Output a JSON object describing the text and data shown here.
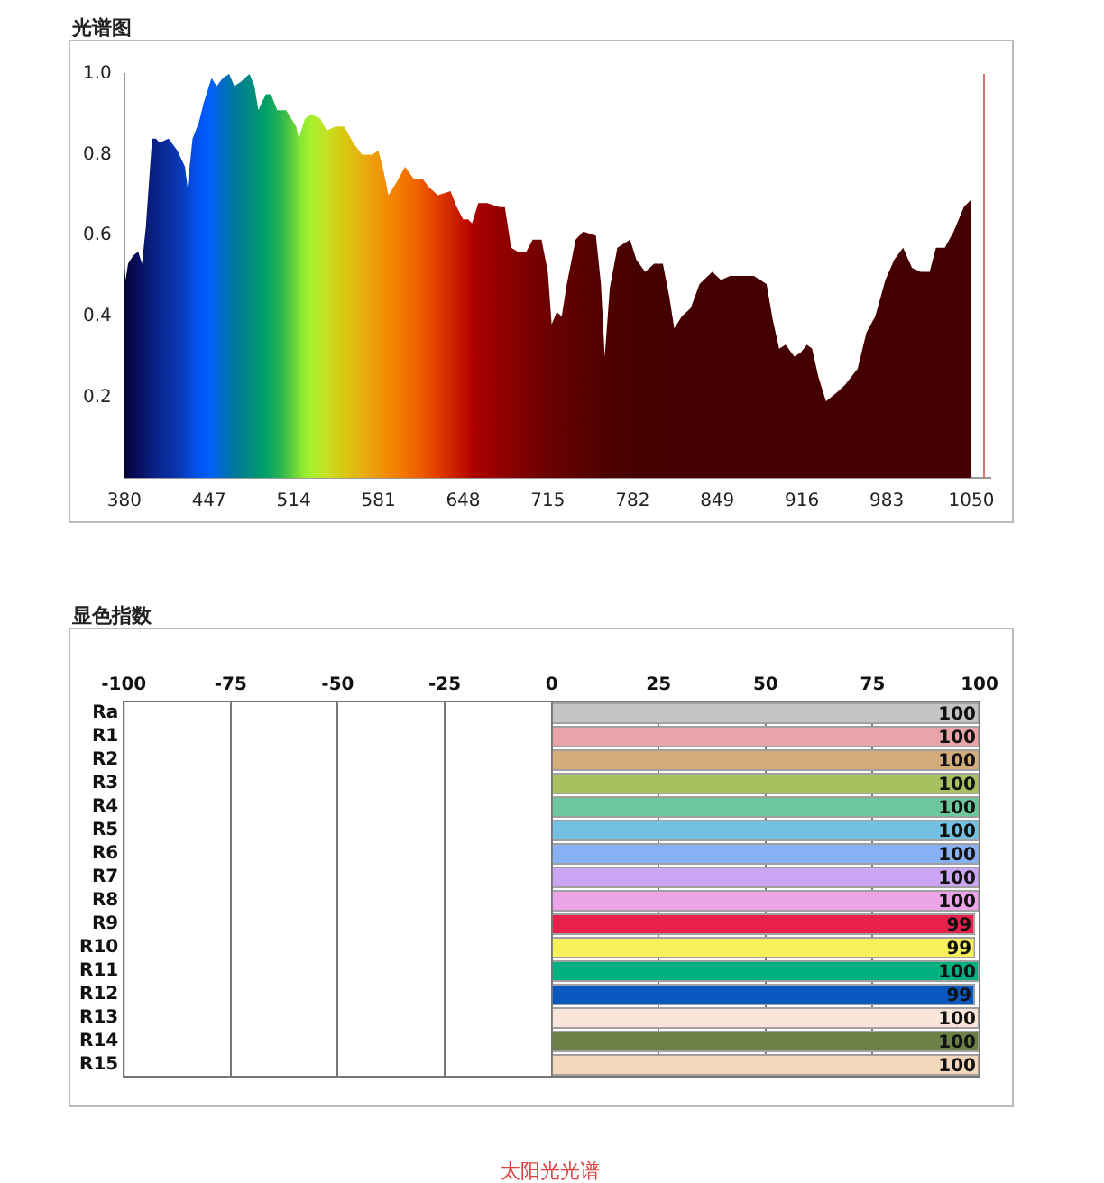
{
  "chart_data": [
    {
      "type": "area",
      "title": "光谱图",
      "x": [
        380,
        381,
        383,
        387,
        391,
        394,
        397,
        402,
        405,
        408,
        415,
        422,
        428,
        430,
        434,
        439,
        443,
        449,
        453,
        458,
        463,
        467,
        472,
        479,
        483,
        486,
        492,
        496,
        501,
        508,
        516,
        518,
        523,
        528,
        535,
        540,
        547,
        554,
        561,
        568,
        576,
        581,
        585,
        589,
        595,
        602,
        609,
        616,
        621,
        628,
        638,
        643,
        648,
        652,
        655,
        660,
        667,
        677,
        681,
        686,
        691,
        698,
        703,
        710,
        715,
        718,
        722,
        726,
        730,
        737,
        743,
        753,
        757,
        760,
        764,
        770,
        780,
        785,
        792,
        799,
        806,
        811,
        815,
        821,
        828,
        835,
        845,
        852,
        859,
        868,
        878,
        888,
        893,
        898,
        903,
        910,
        915,
        920,
        924,
        929,
        935,
        943,
        950,
        960,
        967,
        974,
        982,
        989,
        996,
        1003,
        1010,
        1017,
        1022,
        1029,
        1036,
        1044,
        1050
      ],
      "series": [
        {
          "values": [
            0.53,
            0.49,
            0.53,
            0.55,
            0.56,
            0.53,
            0.62,
            0.84,
            0.84,
            0.83,
            0.84,
            0.81,
            0.77,
            0.72,
            0.84,
            0.88,
            0.93,
            0.99,
            0.97,
            0.99,
            1.0,
            0.97,
            0.98,
            1.0,
            0.97,
            0.91,
            0.95,
            0.95,
            0.91,
            0.91,
            0.87,
            0.84,
            0.89,
            0.9,
            0.89,
            0.86,
            0.87,
            0.87,
            0.83,
            0.8,
            0.8,
            0.81,
            0.76,
            0.7,
            0.73,
            0.77,
            0.74,
            0.74,
            0.72,
            0.7,
            0.71,
            0.67,
            0.64,
            0.64,
            0.63,
            0.68,
            0.68,
            0.67,
            0.67,
            0.57,
            0.56,
            0.56,
            0.59,
            0.59,
            0.51,
            0.38,
            0.41,
            0.4,
            0.48,
            0.59,
            0.61,
            0.6,
            0.48,
            0.3,
            0.47,
            0.57,
            0.59,
            0.54,
            0.51,
            0.53,
            0.53,
            0.45,
            0.37,
            0.4,
            0.42,
            0.48,
            0.51,
            0.49,
            0.5,
            0.5,
            0.5,
            0.48,
            0.39,
            0.32,
            0.33,
            0.3,
            0.31,
            0.33,
            0.32,
            0.25,
            0.19,
            0.21,
            0.23,
            0.27,
            0.36,
            0.4,
            0.49,
            0.54,
            0.57,
            0.52,
            0.51,
            0.51,
            0.57,
            0.57,
            0.61,
            0.67,
            0.69
          ],
          "colors": [
            "#05052e",
            "#050535",
            "#06063d",
            "#070850",
            "#081060",
            "#091468",
            "#0a1870",
            "#0a1e80",
            "#0a2288",
            "#0a2690",
            "#0a2ea0",
            "#0a36b0",
            "#0840c4",
            "#0644cc",
            "#044ce0",
            "#0254f0",
            "#005af8",
            "#0060f8",
            "#0066e0",
            "#006cc4",
            "#0072b0",
            "#00789c",
            "#008090",
            "#008a84",
            "#009078",
            "#009670",
            "#00a068",
            "#10a860",
            "#20b058",
            "#40c048",
            "#70d838",
            "#80e030",
            "#98ec30",
            "#a8f030",
            "#b8e828",
            "#c8e020",
            "#d0d418",
            "#d8c810",
            "#e0bc10",
            "#e8b010",
            "#eca010",
            "#ee9808",
            "#f09000",
            "#f08800",
            "#f28000",
            "#f27400",
            "#f06800",
            "#ec5800",
            "#e84c00",
            "#e03c00",
            "#d02800",
            "#c81c00",
            "#c01000",
            "#b80800",
            "#b00000",
            "#a80000",
            "#a00000",
            "#940000",
            "#900000",
            "#8a0000",
            "#840000",
            "#7c0000",
            "#780000",
            "#700000",
            "#6c0000",
            "#680000",
            "#660000",
            "#640000",
            "#600000",
            "#5c0000",
            "#580000",
            "#540000",
            "#520000",
            "#500000",
            "#4e0000",
            "#4c0000",
            "#480000",
            "#460000",
            "#460000",
            "#450000",
            "#450000",
            "#440000",
            "#440000",
            "#440000",
            "#440000",
            "#440000",
            "#440000",
            "#440000",
            "#440000",
            "#440000",
            "#440000",
            "#440000",
            "#440000",
            "#440000",
            "#440000",
            "#440000",
            "#440000",
            "#440000",
            "#440000",
            "#440000",
            "#440000",
            "#440000",
            "#440000",
            "#440000",
            "#440000",
            "#440000",
            "#440000",
            "#440000",
            "#440000",
            "#440000",
            "#440000",
            "#440000",
            "#440000",
            "#440000",
            "#440000",
            "#440000",
            "#440000"
          ]
        }
      ],
      "xlim": [
        380,
        1065
      ],
      "xticks": [
        380,
        447,
        514,
        581,
        648,
        715,
        782,
        849,
        916,
        983,
        1050
      ],
      "ylim": [
        0,
        1.0
      ],
      "yticks": [
        0.2,
        0.4,
        0.6,
        0.8,
        {
          "value": 1.0,
          "label": "1.0"
        }
      ],
      "grid": false,
      "marker": "none",
      "ref_lines": [
        {
          "axis": "x",
          "value": 1060,
          "color": "#e07070"
        }
      ]
    },
    {
      "type": "bar",
      "title": "显色指数",
      "orientation": "horizontal",
      "categories": [
        "Ra",
        "R1",
        "R2",
        "R3",
        "R4",
        "R5",
        "R6",
        "R7",
        "R8",
        "R9",
        "R10",
        "R11",
        "R12",
        "R13",
        "R14",
        "R15"
      ],
      "values": [
        100,
        100,
        100,
        100,
        100,
        100,
        100,
        100,
        100,
        99,
        99,
        100,
        99,
        100,
        100,
        100
      ],
      "colors": [
        "#c4c4c4",
        "#e8a4a8",
        "#d4ac7c",
        "#a8c060",
        "#6cc89c",
        "#74c0e0",
        "#88b0f4",
        "#cca4f4",
        "#eca4e8",
        "#e8204c",
        "#f8f058",
        "#00b080",
        "#0858c0",
        "#fae6d8",
        "#6c8048",
        "#f4d8bc"
      ],
      "xlim": [
        -100,
        100
      ],
      "xticks": [
        -100,
        -75,
        -50,
        -25,
        0,
        25,
        50,
        75,
        100
      ],
      "grid": "x",
      "data_labels": true,
      "annotations": [
        "太阳光光谱"
      ]
    }
  ]
}
